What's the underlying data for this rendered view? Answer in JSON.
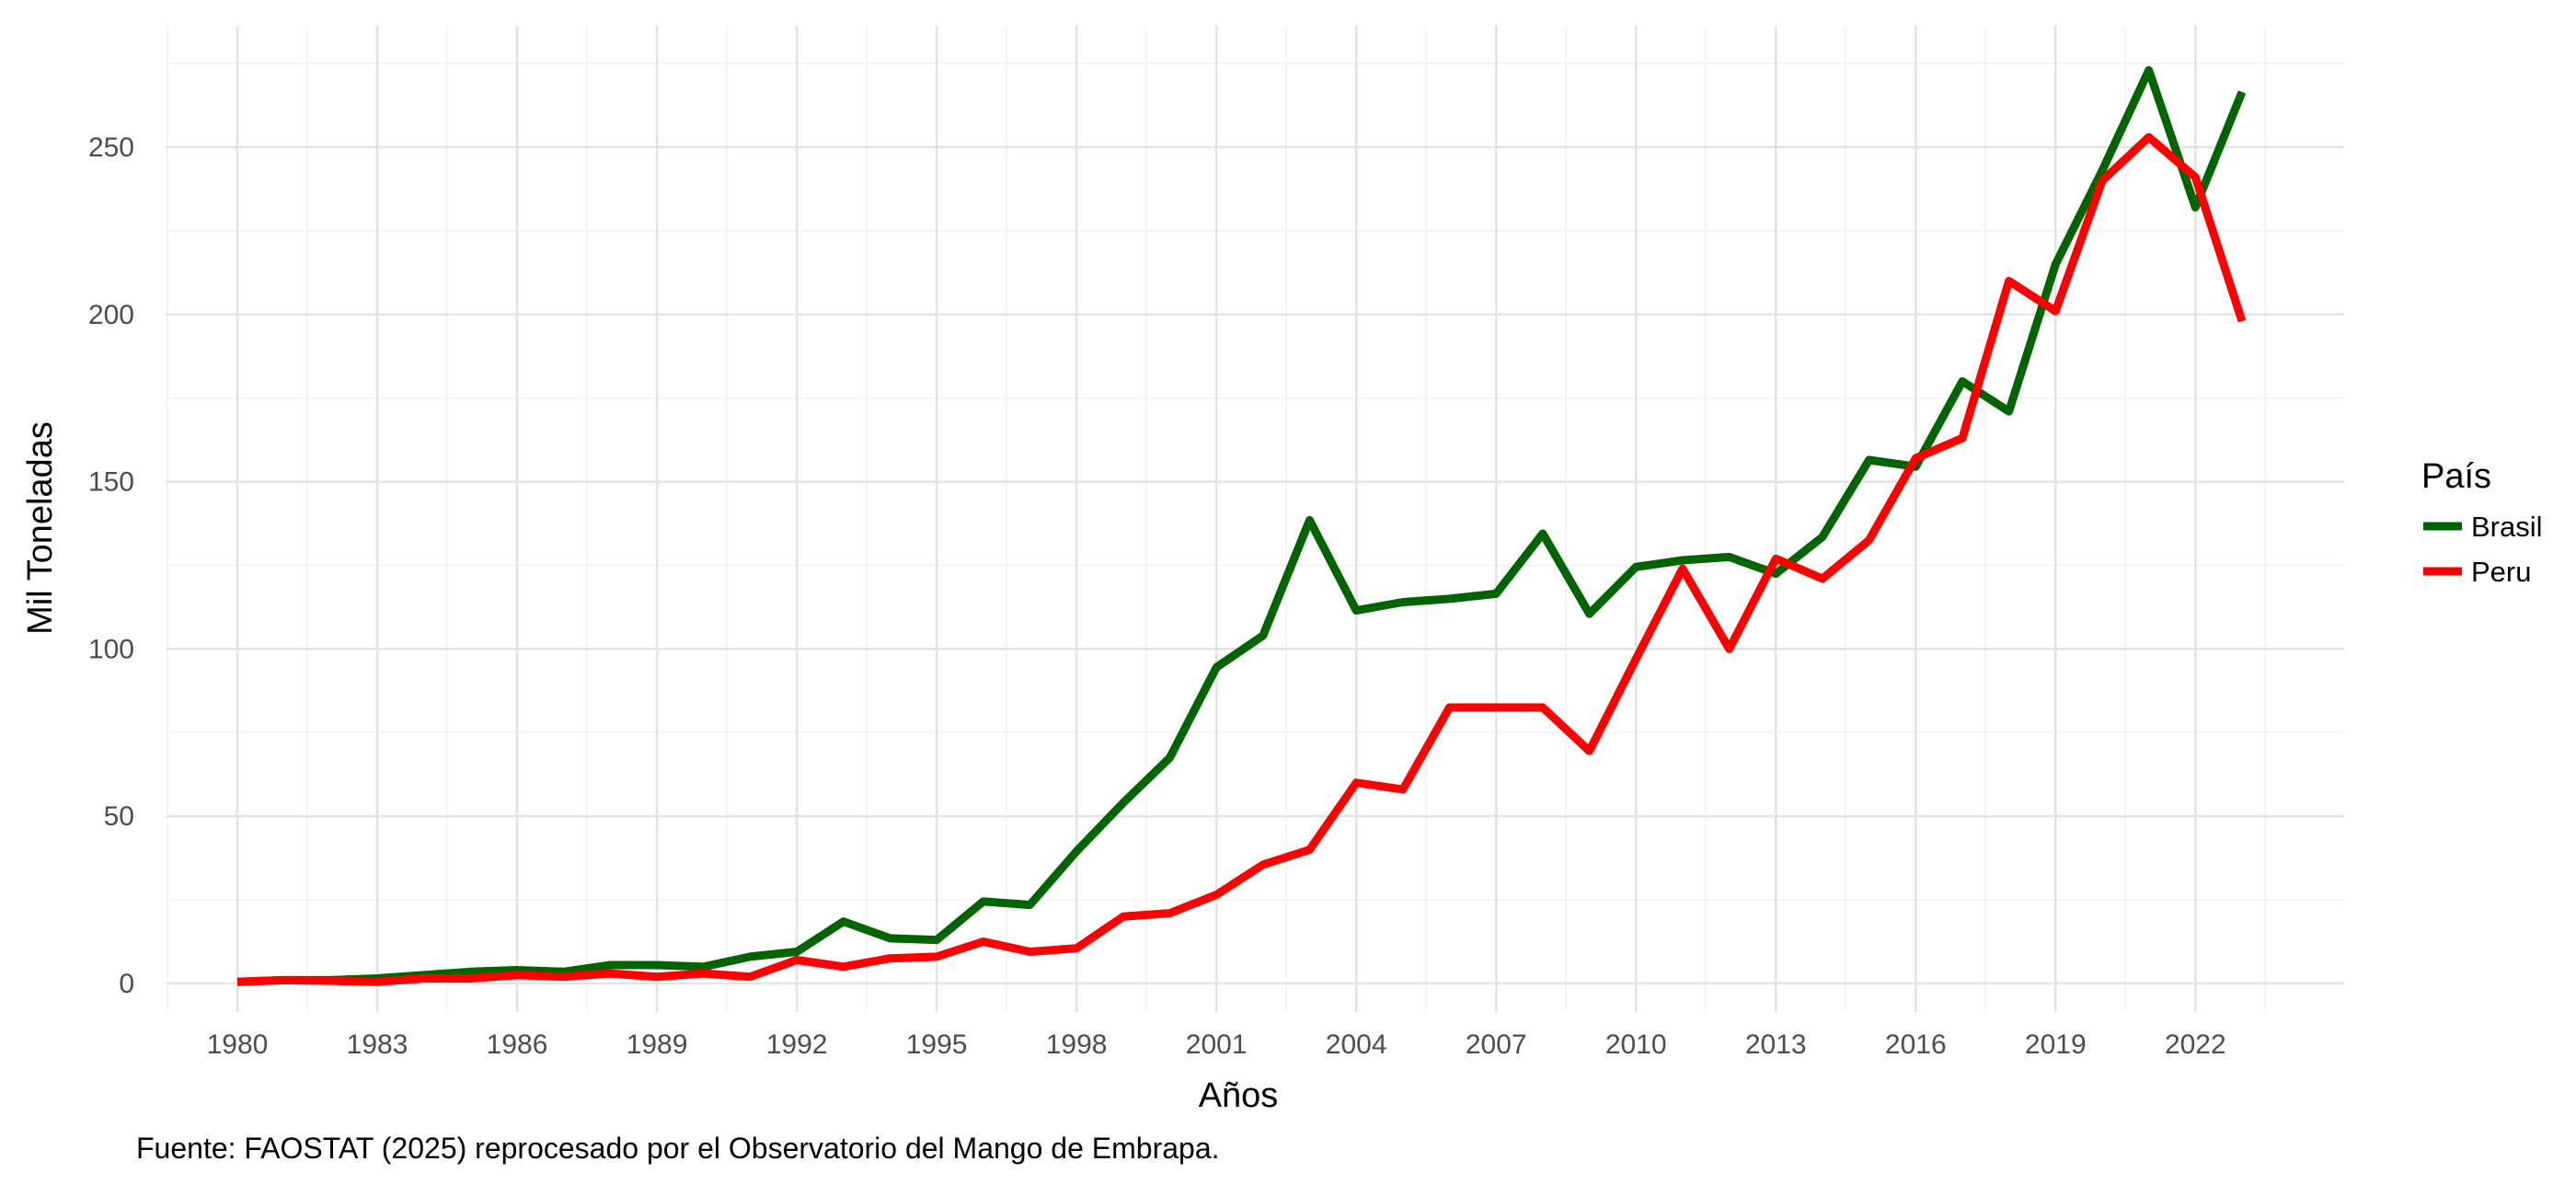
{
  "chart_data": {
    "type": "line",
    "title": "",
    "xlabel": "Años",
    "ylabel": "Mil Toneladas",
    "caption": "Fuente: FAOSTAT (2025) reprocesado por el Observatorio del Mango de Embrapa.",
    "legend_title": "País",
    "legend_position": "right",
    "grid": true,
    "xlim": [
      1980,
      2023
    ],
    "ylim": [
      0,
      275
    ],
    "x_ticks": [
      1980,
      1983,
      1986,
      1989,
      1992,
      1995,
      1998,
      2001,
      2004,
      2007,
      2010,
      2013,
      2016,
      2019,
      2022
    ],
    "y_ticks": [
      0,
      50,
      100,
      150,
      200,
      250
    ],
    "x": [
      1980,
      1981,
      1982,
      1983,
      1984,
      1985,
      1986,
      1987,
      1988,
      1989,
      1990,
      1991,
      1992,
      1993,
      1994,
      1995,
      1996,
      1997,
      1998,
      1999,
      2000,
      2001,
      2002,
      2003,
      2004,
      2005,
      2006,
      2007,
      2008,
      2009,
      2010,
      2011,
      2012,
      2013,
      2014,
      2015,
      2016,
      2017,
      2018,
      2019,
      2020,
      2021,
      2022,
      2023
    ],
    "series": [
      {
        "name": "Brasil",
        "color": "#006400",
        "values": [
          0.5,
          1,
          1,
          1.5,
          2.5,
          3.5,
          4,
          3.5,
          5.5,
          5.5,
          5,
          8,
          9.5,
          18.5,
          13.5,
          13,
          24.5,
          23.5,
          39.5,
          54,
          67.5,
          94.5,
          104,
          138.5,
          111.5,
          114,
          115,
          116.5,
          134.5,
          110.5,
          124.5,
          126.5,
          127.5,
          122.5,
          133.5,
          156.5,
          154.5,
          180,
          171,
          215,
          243,
          273,
          232,
          266.5
        ]
      },
      {
        "name": "Peru",
        "color": "#ff0000",
        "values": [
          0.5,
          1,
          0.8,
          0.5,
          1.5,
          1.5,
          2.5,
          2,
          3,
          2,
          3,
          2,
          7,
          5,
          7.5,
          8,
          12.5,
          9.5,
          10.5,
          20,
          21,
          26.5,
          35.5,
          40,
          60,
          58,
          82.5,
          82.5,
          82.5,
          69.5,
          97,
          124,
          100,
          127,
          121,
          132.5,
          157,
          163,
          210,
          201,
          240,
          253,
          241,
          198
        ]
      }
    ]
  }
}
